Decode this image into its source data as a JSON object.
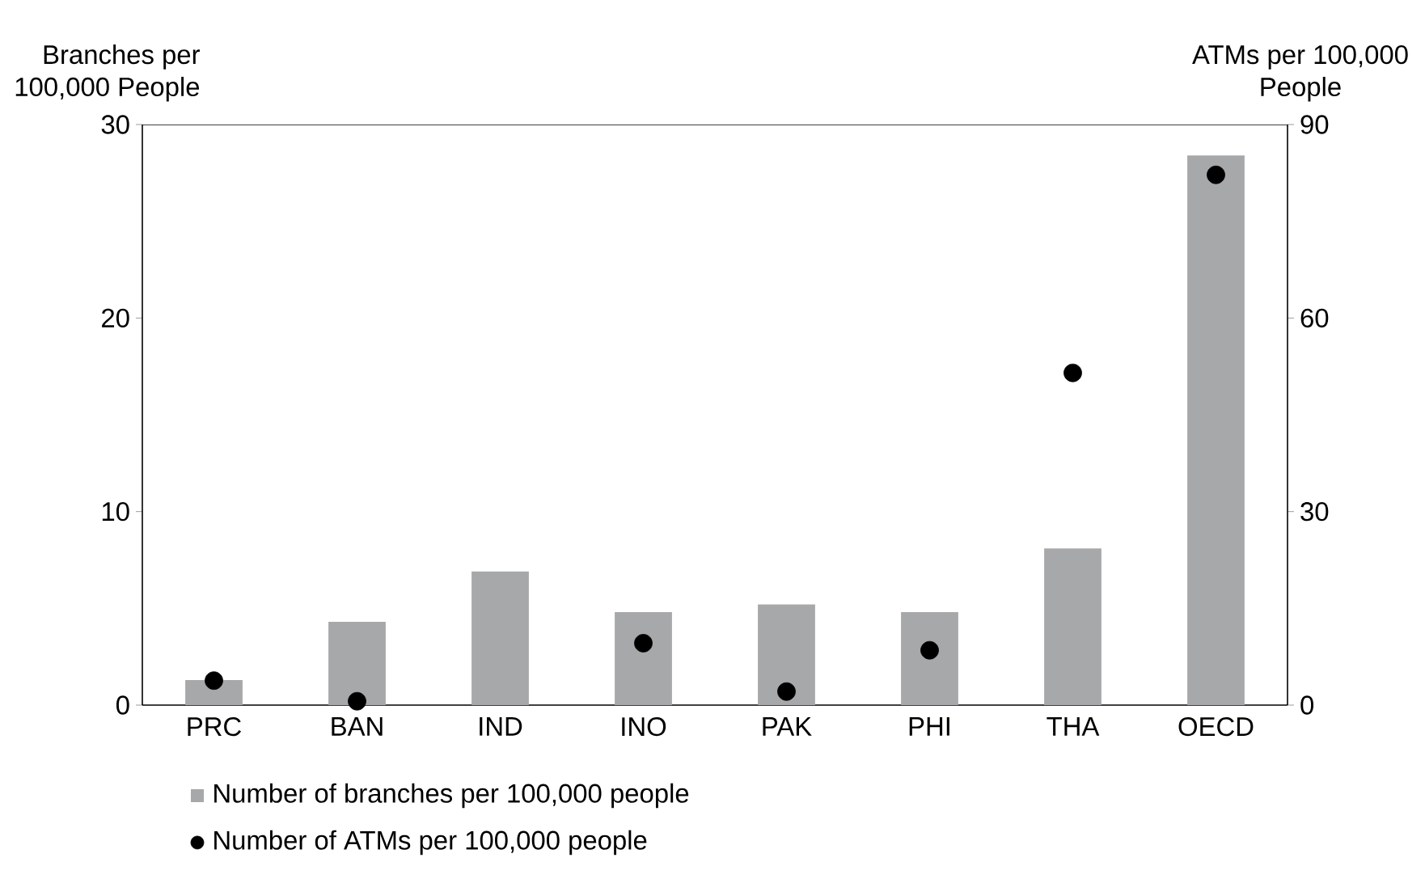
{
  "chart_data": {
    "type": "bar",
    "ylabel": "Branches per\n100,000 People",
    "y2label": "ATMs per 100,000\nPeople",
    "categories": [
      "PRC",
      "BAN",
      "IND",
      "INO",
      "PAK",
      "PHI",
      "THA",
      "OECD"
    ],
    "series": [
      {
        "name": "Number of branches per 100,000 people",
        "color": "#a7a8aa",
        "values": [
          1.3,
          4.3,
          6.9,
          4.8,
          5.2,
          4.8,
          8.1,
          28.4
        ]
      },
      {
        "name": "Number of ATMs per 100,000 people",
        "type": "scatter",
        "axis": "y2",
        "marker": "circle",
        "color": "#000000",
        "values": [
          3.8,
          0.6,
          null,
          9.6,
          2.1,
          8.5,
          51.5,
          82.2
        ]
      }
    ],
    "ylim": [
      0,
      30
    ],
    "yticks": [
      0,
      10,
      20,
      30
    ],
    "y2lim": [
      0,
      90
    ],
    "y2ticks": [
      0,
      30,
      60,
      90
    ],
    "legend": "bottom",
    "grid": false
  }
}
